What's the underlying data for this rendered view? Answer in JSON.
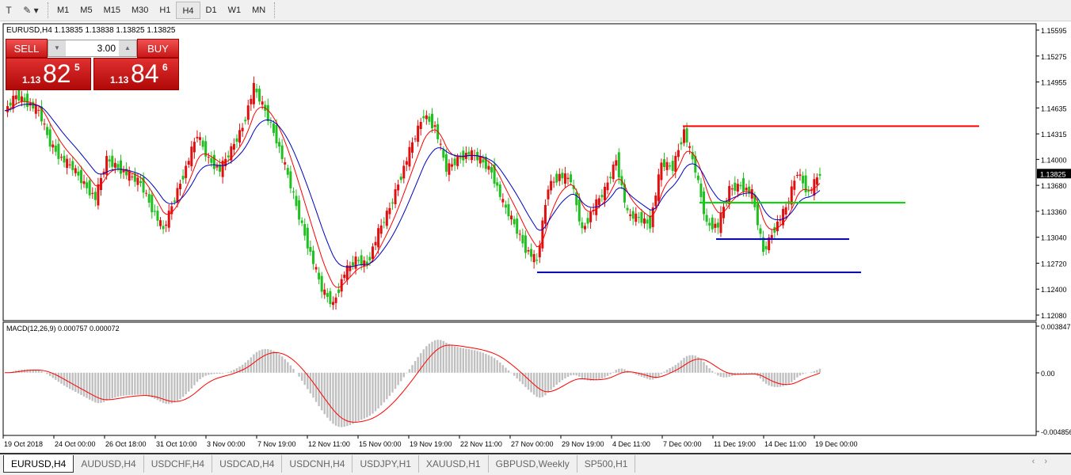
{
  "toolbar": {
    "timeframes": [
      "M1",
      "M5",
      "M15",
      "M30",
      "H1",
      "H4",
      "D1",
      "W1",
      "MN"
    ],
    "active": "H4"
  },
  "symbol_info": "EURUSD,H4  1.13835 1.13838 1.13825 1.13825",
  "trade_panel": {
    "sell_label": "SELL",
    "buy_label": "BUY",
    "lot": "3.00",
    "sell_prefix": "1.13",
    "sell_big": "82",
    "sell_sup": "5",
    "buy_prefix": "1.13",
    "buy_big": "84",
    "buy_sup": "6"
  },
  "indicator_label": "MACD(12,26,9) 0.000757 0.000072",
  "tabs": [
    "EURUSD,H4",
    "AUDUSD,H4",
    "USDCHF,H4",
    "USDCAD,H4",
    "USDCNH,H4",
    "USDJPY,H1",
    "XAUUSD,H1",
    "GBPUSD,Weekly",
    "SP500,H1"
  ],
  "active_tab": "EURUSD,H4",
  "chart_data": {
    "type": "candlestick",
    "symbol": "EURUSD",
    "timeframe": "H4",
    "price_ticks": [
      "1.15595",
      "1.15275",
      "1.14955",
      "1.14635",
      "1.14315",
      "1.14000",
      "1.13680",
      "1.13360",
      "1.13040",
      "1.12720",
      "1.12400",
      "1.12080"
    ],
    "ylim": [
      1.1208,
      1.15595
    ],
    "current_price": "1.13825",
    "macd_ticks": [
      "0.003847",
      "0.00",
      "-0.004856"
    ],
    "macd_ylim": [
      -0.004856,
      0.003847
    ],
    "time_labels": [
      "19 Oct 2018",
      "24 Oct 00:00",
      "26 Oct 18:00",
      "31 Oct 10:00",
      "3 Nov 00:00",
      "7 Nov 19:00",
      "12 Nov 11:00",
      "15 Nov 00:00",
      "19 Nov 19:00",
      "22 Nov 11:00",
      "27 Nov 00:00",
      "29 Nov 19:00",
      "4 Dec 11:00",
      "7 Dec 00:00",
      "11 Dec 19:00",
      "14 Dec 11:00",
      "19 Dec 00:00"
    ],
    "closes": [
      1.146,
      1.1479,
      1.147,
      1.146,
      1.142,
      1.1401,
      1.139,
      1.137,
      1.1352,
      1.14,
      1.139,
      1.138,
      1.1371,
      1.134,
      1.1313,
      1.1352,
      1.139,
      1.1431,
      1.14,
      1.1387,
      1.1412,
      1.144,
      1.1489,
      1.146,
      1.1425,
      1.138,
      1.133,
      1.1284,
      1.124,
      1.1221,
      1.126,
      1.1276,
      1.1271,
      1.131,
      1.134,
      1.138,
      1.142,
      1.1455,
      1.144,
      1.1388,
      1.14,
      1.1408,
      1.14,
      1.1385,
      1.1346,
      1.132,
      1.129,
      1.1274,
      1.1367,
      1.138,
      1.1375,
      1.1312,
      1.134,
      1.1362,
      1.14,
      1.1332,
      1.1328,
      1.132,
      1.1395,
      1.139,
      1.1435,
      1.1387,
      1.132,
      1.1318,
      1.1363,
      1.1368,
      1.1358,
      1.1286,
      1.1315,
      1.134,
      1.1385,
      1.1358,
      1.1383
    ],
    "ma_colors": {
      "fast": "#ff0000",
      "slow": "#0000c0"
    },
    "candle_colors": {
      "up": "#e01010",
      "down": "#20c020"
    },
    "levels": [
      {
        "price": 1.1441,
        "color": "#ff0000"
      },
      {
        "price": 1.13467,
        "color": "#00dd00"
      },
      {
        "price": 1.13017,
        "color": "#0000ff"
      },
      {
        "price": 1.12607,
        "color": "#0000ff"
      }
    ]
  }
}
